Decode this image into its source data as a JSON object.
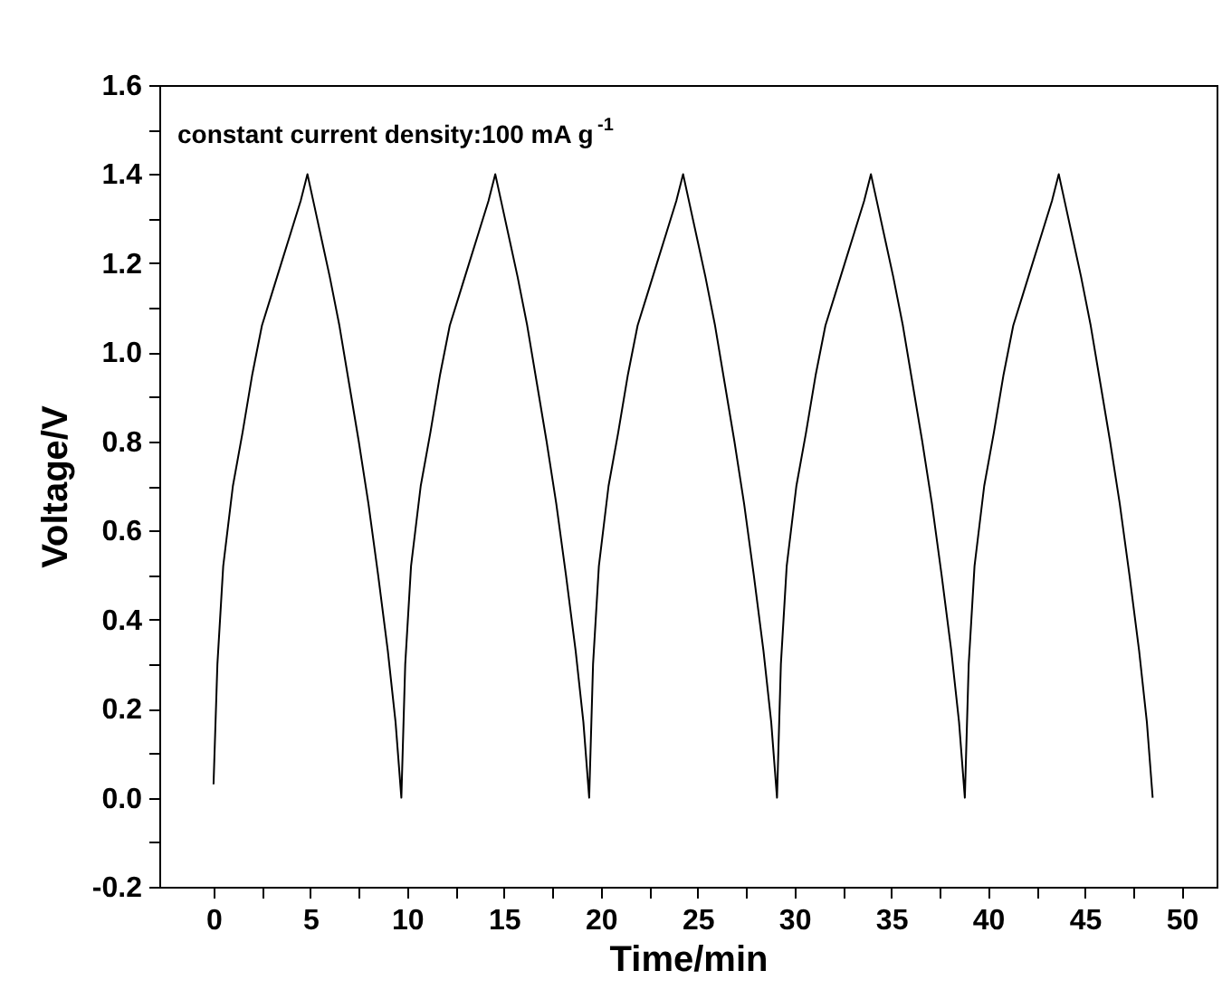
{
  "chart_data": {
    "type": "line",
    "xlabel": "Time/min",
    "ylabel": "Voltage/V",
    "annotations": [
      "constant current density:100 mA g$^{-1}$"
    ],
    "x": [
      0,
      0.2,
      0.5,
      1.0,
      1.5,
      2.0,
      2.5,
      3.0,
      3.5,
      4.0,
      4.5,
      4.85,
      5.2,
      5.6,
      6.0,
      6.5,
      7.0,
      7.5,
      8.0,
      8.5,
      9.0,
      9.4,
      9.7,
      9.9,
      10.2,
      10.7,
      11.2,
      11.7,
      12.2,
      12.7,
      13.2,
      13.7,
      14.2,
      14.55,
      14.9,
      15.3,
      15.7,
      16.2,
      16.7,
      17.2,
      17.7,
      18.2,
      18.7,
      19.1,
      19.4,
      19.6,
      19.9,
      20.4,
      20.9,
      21.4,
      21.9,
      22.4,
      22.9,
      23.4,
      23.9,
      24.25,
      24.6,
      25.0,
      25.4,
      25.9,
      26.4,
      26.9,
      27.4,
      27.9,
      28.4,
      28.8,
      29.1,
      29.3,
      29.6,
      30.1,
      30.6,
      31.1,
      31.6,
      32.1,
      32.6,
      33.1,
      33.6,
      33.95,
      34.3,
      34.7,
      35.1,
      35.6,
      36.1,
      36.6,
      37.1,
      37.6,
      38.1,
      38.5,
      38.8,
      39.0,
      39.3,
      39.8,
      40.3,
      40.8,
      41.3,
      41.8,
      42.3,
      42.8,
      43.3,
      43.65,
      44.0,
      44.4,
      44.8,
      45.3,
      45.8,
      46.3,
      46.8,
      47.3,
      47.8,
      48.2,
      48.5
    ],
    "series": [
      {
        "color": "#000000",
        "values": [
          0.03,
          0.3,
          0.52,
          0.7,
          0.82,
          0.95,
          1.06,
          1.13,
          1.2,
          1.27,
          1.34,
          1.4,
          1.33,
          1.25,
          1.17,
          1.06,
          0.93,
          0.8,
          0.66,
          0.5,
          0.33,
          0.17,
          0.0,
          0.3,
          0.52,
          0.7,
          0.82,
          0.95,
          1.06,
          1.13,
          1.2,
          1.27,
          1.34,
          1.4,
          1.33,
          1.25,
          1.17,
          1.06,
          0.93,
          0.8,
          0.66,
          0.5,
          0.33,
          0.17,
          0.0,
          0.3,
          0.52,
          0.7,
          0.82,
          0.95,
          1.06,
          1.13,
          1.2,
          1.27,
          1.34,
          1.4,
          1.33,
          1.25,
          1.17,
          1.06,
          0.93,
          0.8,
          0.66,
          0.5,
          0.33,
          0.17,
          0.0,
          0.3,
          0.52,
          0.7,
          0.82,
          0.95,
          1.06,
          1.13,
          1.2,
          1.27,
          1.34,
          1.4,
          1.33,
          1.25,
          1.17,
          1.06,
          0.93,
          0.8,
          0.66,
          0.5,
          0.33,
          0.17,
          0.0,
          0.3,
          0.52,
          0.7,
          0.82,
          0.95,
          1.06,
          1.13,
          1.2,
          1.27,
          1.34,
          1.4,
          1.33,
          1.25,
          1.17,
          1.06,
          0.93,
          0.8,
          0.66,
          0.5,
          0.33,
          0.17,
          0.0
        ]
      }
    ],
    "xlim": [
      -2.8,
      51.8
    ],
    "xticks": [
      0,
      {
        "value": 2.5,
        "label": null
      },
      5,
      {
        "value": 7.5,
        "label": null
      },
      10,
      {
        "value": 12.5,
        "label": null
      },
      15,
      {
        "value": 17.5,
        "label": null
      },
      20,
      {
        "value": 22.5,
        "label": null
      },
      25,
      {
        "value": 27.5,
        "label": null
      },
      30,
      {
        "value": 32.5,
        "label": null
      },
      35,
      {
        "value": 37.5,
        "label": null
      },
      40,
      {
        "value": 42.5,
        "label": null
      },
      45,
      {
        "value": 47.5,
        "label": null
      },
      50
    ],
    "ylim": [
      -0.2,
      1.6
    ],
    "yticks": [
      {
        "value": -0.2,
        "label": "-0.2"
      },
      {
        "value": -0.1,
        "label": null
      },
      {
        "value": 0,
        "label": "0.0"
      },
      {
        "value": 0.1,
        "label": null
      },
      {
        "value": 0.2,
        "label": "0.2"
      },
      {
        "value": 0.3,
        "label": null
      },
      {
        "value": 0.4,
        "label": "0.4"
      },
      {
        "value": 0.5,
        "label": null
      },
      {
        "value": 0.6,
        "label": "0.6"
      },
      {
        "value": 0.7,
        "label": null
      },
      {
        "value": 0.8,
        "label": "0.8"
      },
      {
        "value": 0.9,
        "label": null
      },
      {
        "value": 1.0,
        "label": "1.0"
      },
      {
        "value": 1.1,
        "label": null
      },
      {
        "value": 1.2,
        "label": "1.2"
      },
      {
        "value": 1.3,
        "label": null
      },
      {
        "value": 1.4,
        "label": "1.4"
      },
      {
        "value": 1.5,
        "label": null
      },
      {
        "value": 1.6,
        "label": "1.6"
      }
    ],
    "grid": false,
    "marker": "none",
    "line_style": "solid"
  }
}
